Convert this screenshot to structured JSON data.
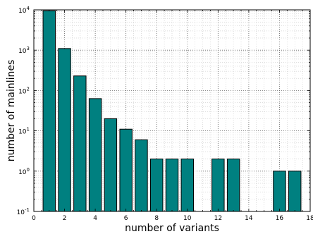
{
  "chart_data": {
    "type": "bar",
    "xlabel": "number of variants",
    "ylabel": "number of mainlines",
    "y_scale": "log",
    "ylim": [
      0.1,
      10000
    ],
    "xlim": [
      0,
      18
    ],
    "x_ticks": [
      "0",
      "2",
      "4",
      "6",
      "8",
      "10",
      "12",
      "14",
      "16",
      "18"
    ],
    "y_ticks": [
      {
        "base": "10",
        "exp": "-1"
      },
      {
        "base": "10",
        "exp": "0"
      },
      {
        "base": "10",
        "exp": "1"
      },
      {
        "base": "10",
        "exp": "2"
      },
      {
        "base": "10",
        "exp": "3"
      },
      {
        "base": "10",
        "exp": "4"
      }
    ],
    "grid": true,
    "bar_color": "#008080",
    "x": [
      1,
      2,
      3,
      4,
      5,
      6,
      7,
      8,
      9,
      10,
      12,
      13,
      16,
      17
    ],
    "values": [
      9500,
      1100,
      230,
      63,
      20,
      11,
      6,
      2,
      2,
      2,
      2,
      2,
      1,
      1
    ]
  }
}
